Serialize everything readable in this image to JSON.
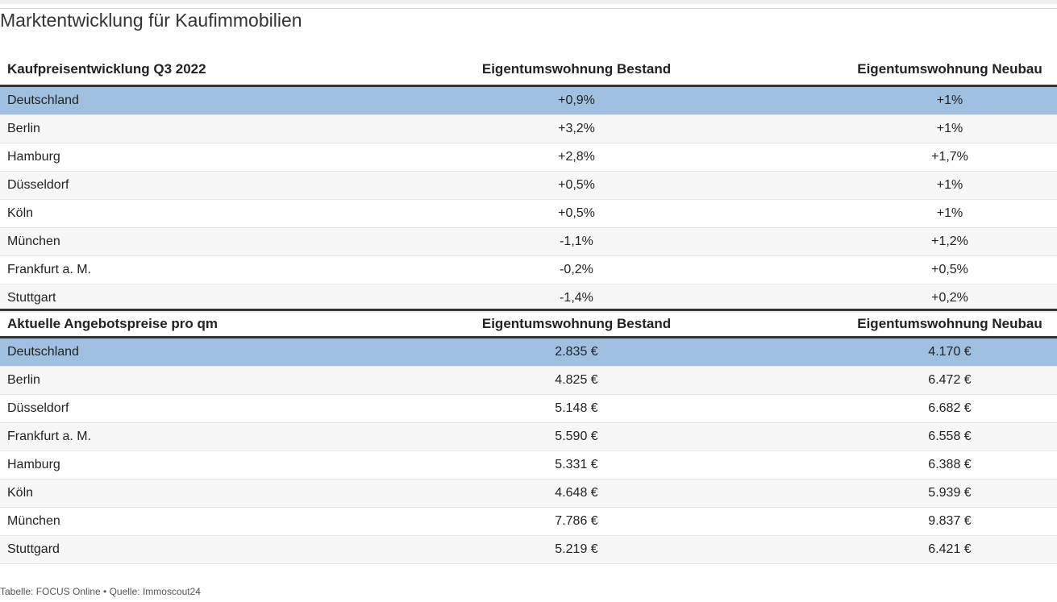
{
  "title": "Marktentwicklung für Kaufimmobilien",
  "tables": [
    {
      "header": [
        "Kaufpreisentwicklung Q3 2022",
        "Eigentumswohnung Bestand",
        "Eigentumswohnung Neubau"
      ],
      "rows": [
        [
          "Deutschland",
          "+0,9%",
          "+1%"
        ],
        [
          "Berlin",
          "+3,2%",
          "+1%"
        ],
        [
          "Hamburg",
          "+2,8%",
          "+1,7%"
        ],
        [
          "Düsseldorf",
          "+0,5%",
          "+1%"
        ],
        [
          "Köln",
          "+0,5%",
          "+1%"
        ],
        [
          "München",
          "-1,1%",
          "+1,2%"
        ],
        [
          "Frankfurt a. M.",
          "-0,2%",
          "+0,5%"
        ],
        [
          "Stuttgart",
          "-1,4%",
          "+0,2%"
        ]
      ]
    },
    {
      "header": [
        "Aktuelle Angebotspreise pro qm",
        "Eigentumswohnung Bestand",
        "Eigentumswohnung Neubau"
      ],
      "rows": [
        [
          "Deutschland",
          "2.835 €",
          "4.170 €"
        ],
        [
          "Berlin",
          "4.825 €",
          "6.472 €"
        ],
        [
          "Düsseldorf",
          "5.148 €",
          "6.682 €"
        ],
        [
          "Frankfurt a. M.",
          "5.590 €",
          "6.558 €"
        ],
        [
          "Hamburg",
          "5.331 €",
          "6.388 €"
        ],
        [
          "Köln",
          "4.648 €",
          "5.939 €"
        ],
        [
          "München",
          "7.786 €",
          "9.837 €"
        ],
        [
          "Stuttgard",
          "5.219 €",
          "6.421 €"
        ]
      ]
    }
  ],
  "footer": "Tabelle: FOCUS Online • Quelle: Immoscout24"
}
